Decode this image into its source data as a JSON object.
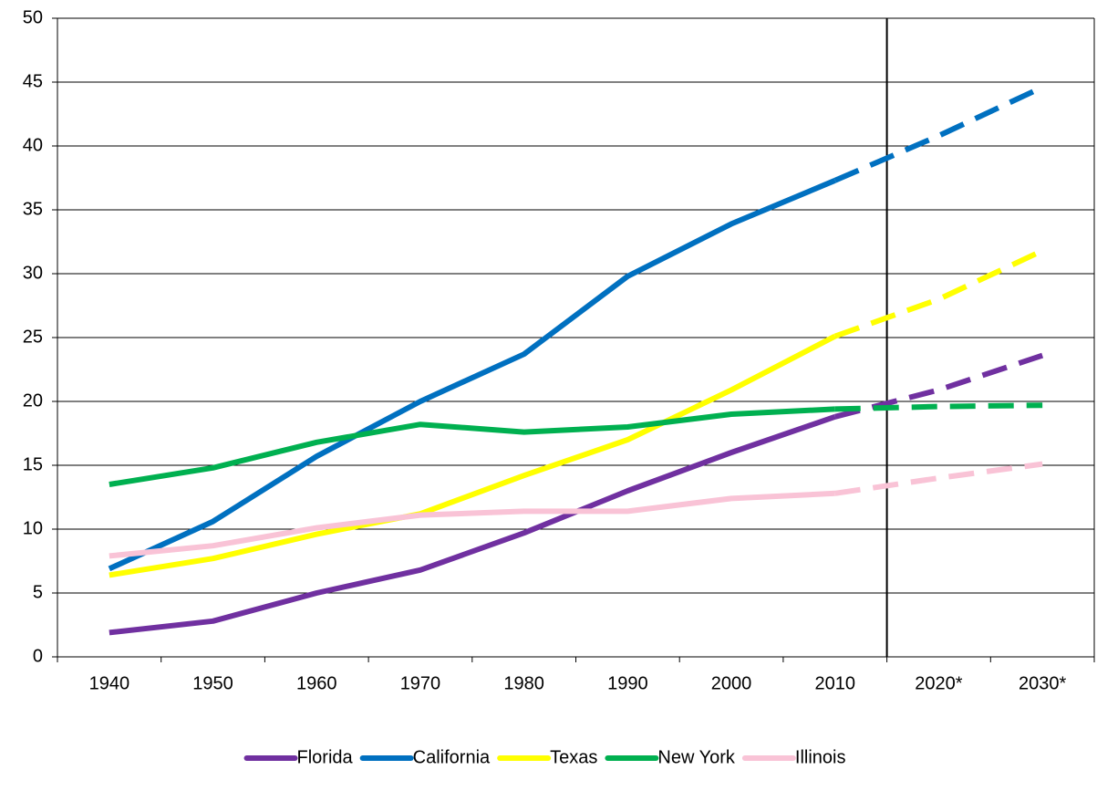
{
  "chart_data": {
    "type": "line",
    "categories": [
      "1940",
      "1950",
      "1960",
      "1970",
      "1980",
      "1990",
      "2000",
      "2010",
      "2020*",
      "2030*"
    ],
    "series": [
      {
        "name": "Florida",
        "color": "#7030a0",
        "values": [
          1.9,
          2.8,
          5.0,
          6.8,
          9.7,
          13.0,
          16.0,
          18.8,
          20.9,
          23.6
        ]
      },
      {
        "name": "California",
        "color": "#0070c0",
        "values": [
          6.9,
          10.6,
          15.7,
          20.0,
          23.7,
          29.8,
          33.9,
          37.3,
          40.8,
          44.6
        ]
      },
      {
        "name": "Texas",
        "color": "#ffff00",
        "values": [
          6.4,
          7.7,
          9.6,
          11.2,
          14.2,
          17.0,
          20.9,
          25.1,
          28.0,
          31.8
        ]
      },
      {
        "name": "New York",
        "color": "#00b050",
        "values": [
          13.5,
          14.8,
          16.8,
          18.2,
          17.6,
          18.0,
          19.0,
          19.4,
          19.6,
          19.7
        ]
      },
      {
        "name": "Illinois",
        "color": "#f9c3d6",
        "values": [
          7.9,
          8.7,
          10.1,
          11.1,
          11.4,
          11.4,
          12.4,
          12.8,
          14.0,
          15.1
        ]
      }
    ],
    "ylim": [
      0,
      50
    ],
    "yticks": [
      0,
      5,
      10,
      15,
      20,
      25,
      30,
      35,
      40,
      45,
      50
    ],
    "grid": true,
    "legend": "bottom"
  }
}
